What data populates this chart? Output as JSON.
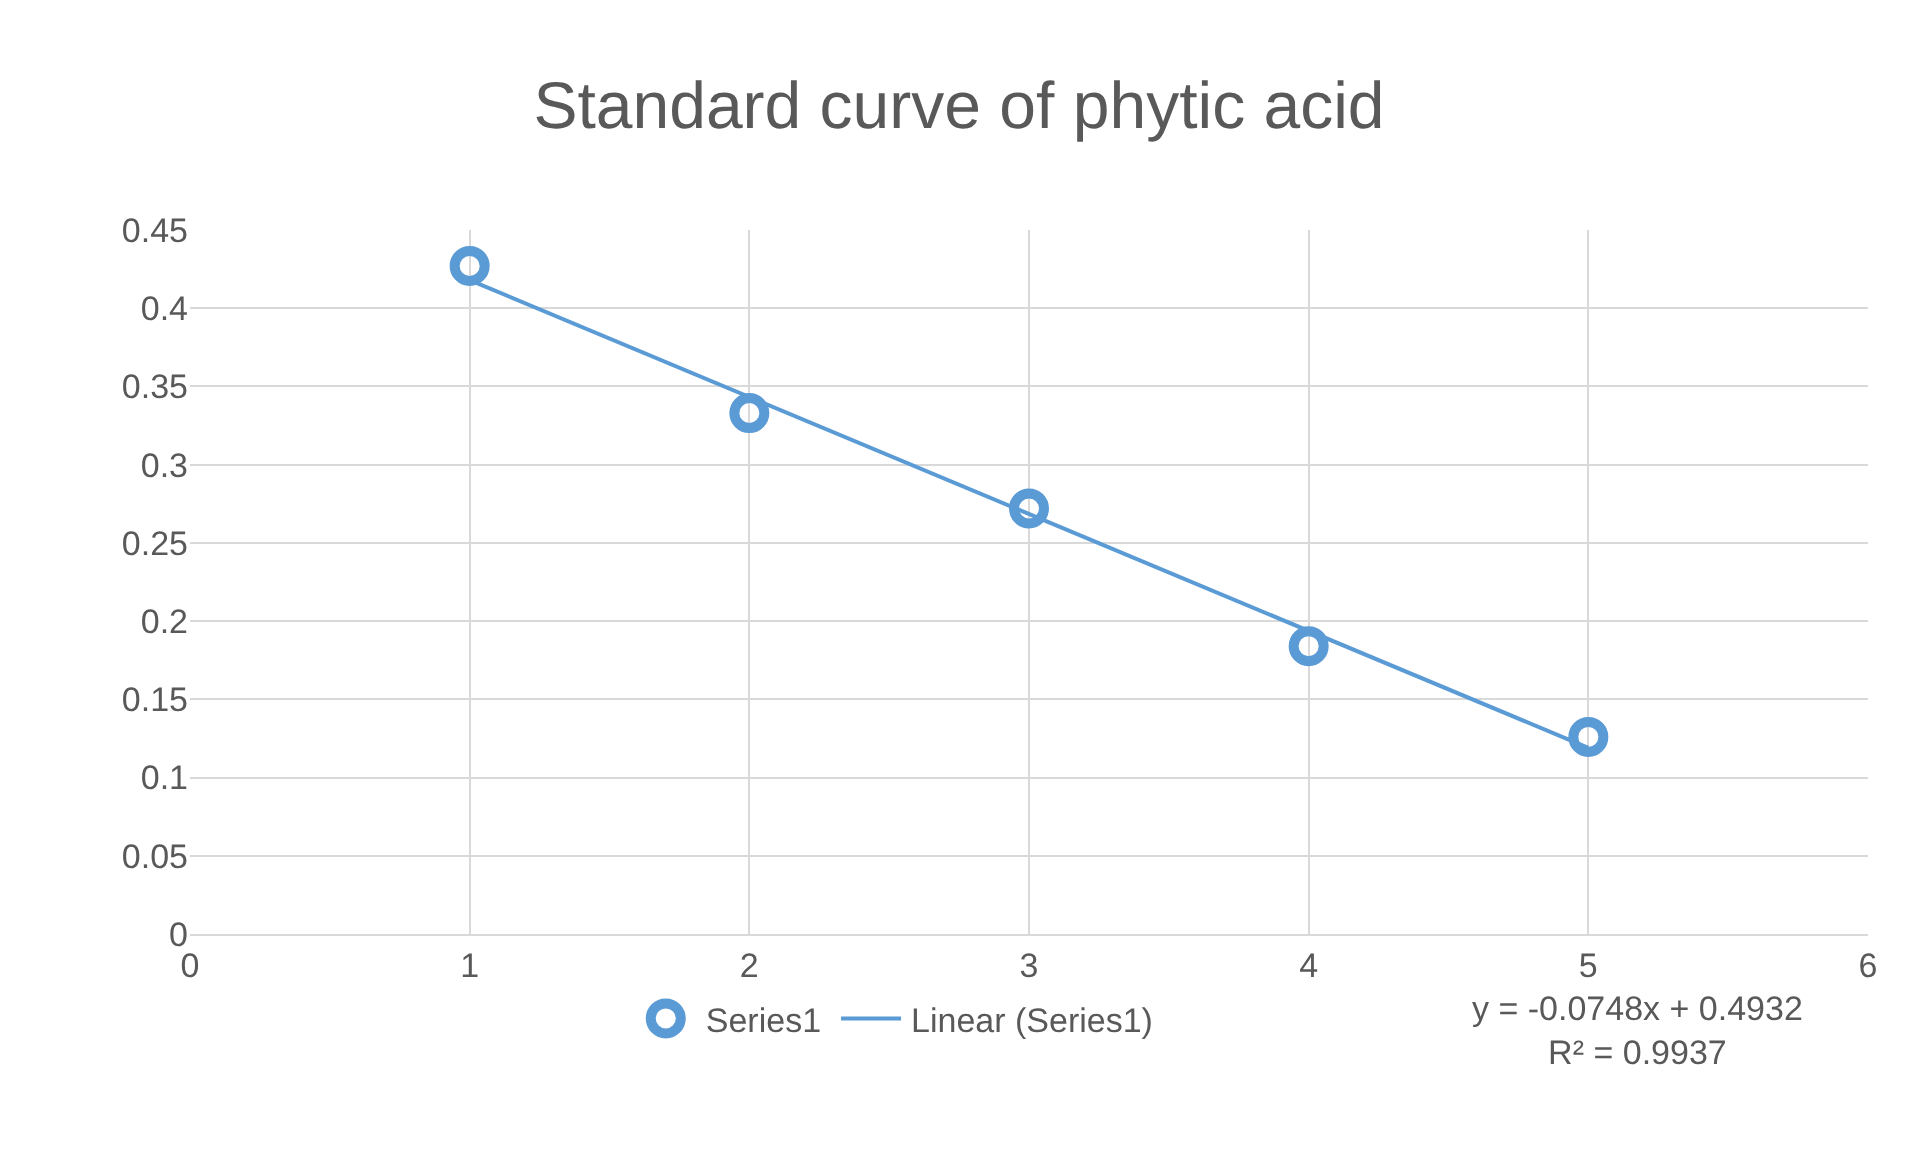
{
  "chart_data": {
    "type": "scatter",
    "title": "Standard curve of phytic acid",
    "x": [
      1,
      2,
      3,
      4,
      5
    ],
    "series": [
      {
        "name": "Series1",
        "color": "#5b9bd5",
        "marker": "circle",
        "values": [
          0.427,
          0.333,
          0.272,
          0.184,
          0.126
        ]
      },
      {
        "name": "Linear (Series1)",
        "color": "#5b9bd5",
        "type": "line",
        "marker": "none",
        "x": [
          1,
          5
        ],
        "values": [
          0.418,
          0.119
        ]
      }
    ],
    "xlim": [
      0,
      6
    ],
    "xticks": [
      0,
      1,
      2,
      3,
      4,
      5,
      6
    ],
    "ylim": [
      0,
      0.45
    ],
    "yticks": [
      0,
      0.05,
      0.1,
      0.15,
      0.2,
      0.25,
      0.3,
      0.35,
      0.4,
      0.45
    ],
    "grid": true,
    "legend": "bottom",
    "annotations": [
      "y = -0.0748x + 0.4932\nR² = 0.9937"
    ]
  }
}
